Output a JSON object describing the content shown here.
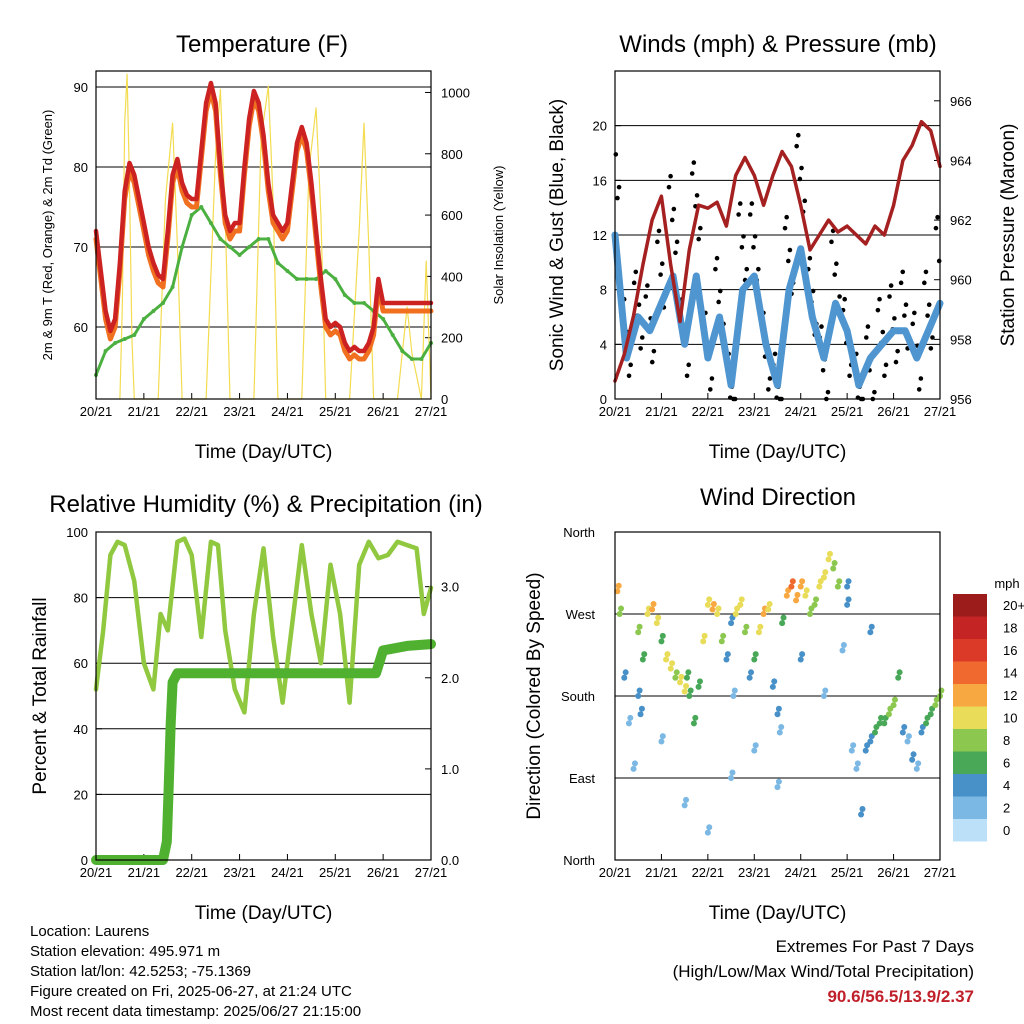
{
  "chart_data": [
    {
      "type": "line",
      "title": "Temperature (F)",
      "xlabel": "Time (Day/UTC)",
      "ylabel": "2m & 9m T (Red, Orange) & 2m Td (Green)",
      "y2label": "Solar Insolation (Yellow)",
      "categories": [
        "20/21",
        "21/21",
        "22/21",
        "23/21",
        "24/21",
        "25/21",
        "26/21",
        "27/21"
      ],
      "ylim": [
        51,
        92
      ],
      "y2lim": [
        0,
        1070
      ],
      "yticks": [
        "60",
        "70",
        "80",
        "90"
      ],
      "y2ticks": [
        "0",
        "200",
        "400",
        "600",
        "800",
        "1000"
      ],
      "grid": true,
      "colors": {
        "temp2m": "#cc2222",
        "temp9m": "#f07020",
        "dewpoint": "#4cb040",
        "solar": "#f3dc50"
      },
      "series": [
        {
          "key": "temp2m",
          "x": [
            0,
            0.1,
            0.2,
            0.3,
            0.4,
            0.5,
            0.6,
            0.7,
            0.8,
            0.9,
            1.0,
            1.1,
            1.2,
            1.3,
            1.4,
            1.5,
            1.6,
            1.7,
            1.8,
            1.9,
            2.0,
            2.1,
            2.2,
            2.3,
            2.4,
            2.5,
            2.6,
            2.7,
            2.8,
            2.9,
            3.0,
            3.1,
            3.2,
            3.3,
            3.4,
            3.5,
            3.6,
            3.7,
            3.8,
            3.9,
            4.0,
            4.1,
            4.2,
            4.3,
            4.4,
            4.5,
            4.6,
            4.7,
            4.8,
            4.9,
            5.0,
            5.1,
            5.2,
            5.3,
            5.4,
            5.5,
            5.6,
            5.7,
            5.8,
            5.9,
            6.0,
            6.1,
            6.2,
            6.3,
            6.4,
            6.5,
            6.6,
            6.7,
            6.8,
            6.9,
            7.0
          ],
          "y": [
            72,
            67,
            62,
            59.5,
            61,
            68,
            77,
            80.5,
            79,
            76,
            73,
            70,
            68,
            66.5,
            66,
            72,
            79,
            81,
            78,
            76.5,
            76,
            76,
            82,
            88,
            90.5,
            88,
            80,
            74,
            72,
            73,
            73,
            80,
            86,
            89.5,
            88,
            84,
            78,
            74,
            73,
            72,
            73,
            78,
            83,
            85,
            83,
            78,
            72,
            66,
            61,
            60,
            60.5,
            60,
            58,
            57,
            57.5,
            57,
            57,
            58,
            60,
            66,
            63,
            63,
            63,
            63,
            63,
            63,
            63,
            63,
            63,
            63,
            63
          ]
        },
        {
          "key": "dewpoint",
          "x": [
            0,
            0.2,
            0.4,
            0.6,
            0.8,
            1.0,
            1.2,
            1.4,
            1.6,
            1.8,
            2.0,
            2.2,
            2.4,
            2.6,
            2.8,
            3.0,
            3.2,
            3.4,
            3.6,
            3.8,
            4.0,
            4.2,
            4.4,
            4.6,
            4.8,
            5.0,
            5.2,
            5.4,
            5.6,
            5.8,
            6.0,
            6.2,
            6.4,
            6.6,
            6.8,
            7.0
          ],
          "y": [
            54,
            57,
            58,
            58.5,
            59,
            61,
            62,
            63,
            65,
            70,
            74,
            75,
            73,
            71,
            70,
            69,
            70,
            71,
            71,
            68,
            67,
            66,
            66,
            66,
            67,
            66,
            64,
            63,
            63,
            62,
            61,
            59,
            57,
            56,
            56,
            58
          ]
        },
        {
          "key": "solar",
          "x": [
            0.5,
            0.55,
            0.6,
            0.65,
            0.7,
            0.75,
            0.8,
            1.3,
            1.45,
            1.6,
            1.7,
            1.8,
            2.3,
            2.5,
            2.6,
            2.7,
            2.8,
            3.3,
            3.45,
            3.6,
            3.7,
            3.8,
            4.3,
            4.45,
            4.6,
            4.7,
            4.8,
            5.3,
            5.5,
            5.6,
            5.7,
            5.8,
            6.3,
            6.5,
            6.6,
            6.8,
            6.9,
            7.0
          ],
          "y": [
            0,
            300,
            900,
            1060,
            700,
            200,
            0,
            0,
            650,
            900,
            500,
            0,
            0,
            800,
            1010,
            600,
            0,
            0,
            850,
            1020,
            650,
            0,
            0,
            750,
            950,
            600,
            0,
            0,
            550,
            900,
            500,
            0,
            0,
            300,
            150,
            0,
            450,
            0
          ]
        }
      ]
    },
    {
      "type": "line",
      "title": "Winds (mph) & Pressure (mb)",
      "xlabel": "Time (Day/UTC)",
      "ylabel": "Sonic Wind & Gust (Blue, Black)",
      "y2label": "Station Pressure (Maroon)",
      "categories": [
        "20/21",
        "21/21",
        "22/21",
        "23/21",
        "24/21",
        "25/21",
        "26/21",
        "27/21"
      ],
      "ylim": [
        0,
        24
      ],
      "y2lim": [
        956,
        967
      ],
      "yticks": [
        "0",
        "4",
        "8",
        "12",
        "16",
        "20"
      ],
      "y2ticks": [
        "956",
        "958",
        "960",
        "962",
        "964",
        "966"
      ],
      "grid": true,
      "colors": {
        "wind": "#4f95d0",
        "gust": "#000000",
        "pressure": "#a52020"
      },
      "series": [
        {
          "key": "wind",
          "x": [
            0,
            0.25,
            0.5,
            0.75,
            1.0,
            1.25,
            1.5,
            1.75,
            2.0,
            2.25,
            2.5,
            2.75,
            3.0,
            3.25,
            3.5,
            3.75,
            4.0,
            4.25,
            4.5,
            4.75,
            5.0,
            5.25,
            5.5,
            5.75,
            6.0,
            6.25,
            6.5,
            6.75,
            7.0
          ],
          "y": [
            12,
            3,
            6,
            5,
            7,
            9,
            4,
            9,
            3,
            6,
            1,
            8,
            9,
            4,
            1,
            8,
            11,
            6,
            3,
            7,
            5,
            1,
            3,
            4,
            5,
            5,
            3,
            5,
            7
          ]
        },
        {
          "key": "gust",
          "x": [
            0,
            0.25,
            0.5,
            0.75,
            1.0,
            1.25,
            1.5,
            1.75,
            2.0,
            2.25,
            2.5,
            2.75,
            3.0,
            3.25,
            3.5,
            3.75,
            4.0,
            4.25,
            4.5,
            4.75,
            5.0,
            5.25,
            5.5,
            5.75,
            6.0,
            6.25,
            6.5,
            6.75,
            7.0
          ],
          "y": [
            20,
            7,
            9,
            8,
            12,
            16,
            7,
            17,
            6,
            10,
            3,
            14,
            14,
            6,
            3,
            13,
            19,
            10,
            5,
            12,
            7,
            3,
            5,
            7,
            8,
            9,
            6,
            9,
            13
          ]
        },
        {
          "key": "pressure",
          "x": [
            0,
            0.2,
            0.4,
            0.6,
            0.8,
            1.0,
            1.2,
            1.4,
            1.6,
            1.8,
            2.0,
            2.2,
            2.4,
            2.6,
            2.8,
            3.0,
            3.2,
            3.4,
            3.6,
            3.8,
            4.0,
            4.2,
            4.4,
            4.6,
            4.8,
            5.0,
            5.2,
            5.4,
            5.6,
            5.8,
            6.0,
            6.2,
            6.4,
            6.6,
            6.8,
            7.0
          ],
          "y": [
            956.6,
            957.5,
            958.8,
            960.5,
            962.0,
            962.8,
            960.5,
            958.6,
            961.0,
            962.5,
            962.4,
            962.6,
            961.8,
            963.5,
            964.1,
            963.5,
            962.5,
            963.5,
            964.3,
            963.8,
            962.5,
            961.0,
            961.5,
            962.0,
            961.6,
            961.8,
            961.5,
            961.2,
            961.8,
            961.5,
            962.5,
            964.0,
            964.5,
            965.3,
            965.0,
            963.8
          ]
        }
      ]
    },
    {
      "type": "line",
      "title": "Relative Humidity (%) & Precipitation (in)",
      "xlabel": "Time (Day/UTC)",
      "ylabel": "Percent & Total Rainfall",
      "categories": [
        "20/21",
        "21/21",
        "22/21",
        "23/21",
        "24/21",
        "25/21",
        "26/21",
        "27/21"
      ],
      "ylim": [
        0,
        100
      ],
      "y2lim": [
        0,
        3.6
      ],
      "yticks": [
        "0",
        "20",
        "40",
        "60",
        "80",
        "100"
      ],
      "y2ticks": [
        "0.0",
        "1.0",
        "2.0",
        "3.0"
      ],
      "grid": true,
      "colors": {
        "humidity": "#90c840",
        "precip": "#50b030"
      },
      "series": [
        {
          "key": "humidity",
          "x": [
            0,
            0.15,
            0.3,
            0.45,
            0.6,
            0.8,
            1.0,
            1.2,
            1.35,
            1.5,
            1.7,
            1.85,
            2.0,
            2.2,
            2.4,
            2.55,
            2.7,
            2.9,
            3.1,
            3.3,
            3.5,
            3.7,
            3.9,
            4.1,
            4.3,
            4.5,
            4.7,
            4.9,
            5.1,
            5.3,
            5.5,
            5.7,
            5.9,
            6.1,
            6.3,
            6.5,
            6.7,
            6.85,
            7.0
          ],
          "y": [
            52,
            70,
            93,
            97,
            96,
            85,
            60,
            52,
            75,
            70,
            97,
            98,
            93,
            68,
            97,
            96,
            70,
            52,
            45,
            75,
            95,
            68,
            48,
            72,
            96,
            75,
            60,
            90,
            75,
            48,
            90,
            97,
            92,
            93,
            97,
            96,
            95,
            75,
            83
          ]
        },
        {
          "key": "precip",
          "x": [
            0,
            1.4,
            1.48,
            1.52,
            1.56,
            1.6,
            1.7,
            2.0,
            3.0,
            4.0,
            5.0,
            5.85,
            6.0,
            6.5,
            7.0
          ],
          "y": [
            0,
            0,
            0.2,
            0.8,
            1.5,
            1.95,
            2.05,
            2.05,
            2.05,
            2.05,
            2.05,
            2.05,
            2.3,
            2.35,
            2.37
          ]
        }
      ]
    },
    {
      "type": "scatter",
      "title": "Wind Direction",
      "xlabel": "Time (Day/UTC)",
      "ylabel": "Direction (Colored By Speed)",
      "categories": [
        "20/21",
        "21/21",
        "22/21",
        "23/21",
        "24/21",
        "25/21",
        "26/21",
        "27/21"
      ],
      "ylim": [
        0,
        360
      ],
      "yticks": [
        "North",
        "East",
        "South",
        "West",
        "North"
      ],
      "colorbar_title": "mph",
      "colorbar_labels": [
        "20+",
        "18",
        "16",
        "14",
        "12",
        "10",
        "8",
        "6",
        "4",
        "2",
        "0"
      ],
      "colorbar_colors": [
        "#9c1c1c",
        "#c42424",
        "#dc3a28",
        "#f06a30",
        "#f8a840",
        "#e8dc58",
        "#8cc850",
        "#48a858",
        "#4890c8",
        "#7cb8e4",
        "#bce0f8"
      ],
      "grid": true,
      "series": [
        {
          "key": "direction",
          "x": [
            0.05,
            0.1,
            0.2,
            0.3,
            0.4,
            0.5,
            0.6,
            0.7,
            0.8,
            0.9,
            1.0,
            1.1,
            1.2,
            1.3,
            1.4,
            1.5,
            1.6,
            1.7,
            1.8,
            1.9,
            2.0,
            2.1,
            2.2,
            2.3,
            2.4,
            2.5,
            2.6,
            2.7,
            2.8,
            2.9,
            3.0,
            3.1,
            3.2,
            3.3,
            3.4,
            3.5,
            3.6,
            3.7,
            3.8,
            3.9,
            4.0,
            4.1,
            4.2,
            4.3,
            4.4,
            4.5,
            4.6,
            4.7,
            4.8,
            4.9,
            5.0,
            5.1,
            5.2,
            5.3,
            5.4,
            5.5,
            5.6,
            5.7,
            5.8,
            5.9,
            6.0,
            6.1,
            6.2,
            6.3,
            6.4,
            6.5,
            6.6,
            6.7,
            6.8,
            6.9,
            7.0,
            0.5,
            1.0,
            1.5,
            2.0,
            2.5,
            3.0,
            3.5,
            4.0,
            4.5,
            5.0,
            5.5,
            0.55,
            1.55,
            2.55,
            3.55
          ],
          "y": [
            295,
            270,
            200,
            150,
            100,
            250,
            220,
            270,
            275,
            260,
            240,
            220,
            210,
            200,
            195,
            185,
            180,
            150,
            190,
            240,
            280,
            275,
            270,
            240,
            220,
            260,
            270,
            280,
            250,
            200,
            220,
            250,
            270,
            275,
            190,
            160,
            260,
            290,
            300,
            285,
            300,
            290,
            270,
            280,
            300,
            310,
            330,
            320,
            300,
            230,
            280,
            120,
            100,
            50,
            120,
            130,
            140,
            150,
            150,
            160,
            170,
            200,
            140,
            130,
            110,
            100,
            140,
            150,
            160,
            170,
            180,
            180,
            130,
            60,
            30,
            90,
            120,
            80,
            220,
            180,
            300,
            250,
            160,
            200,
            180,
            140
          ],
          "speed": [
            12,
            8,
            3,
            2,
            2,
            7,
            5,
            9,
            12,
            9,
            6,
            9,
            10,
            8,
            10,
            9,
            6,
            5,
            6,
            9,
            10,
            12,
            10,
            7,
            3,
            3,
            9,
            10,
            8,
            4,
            5,
            9,
            12,
            10,
            4,
            3,
            6,
            12,
            13,
            11,
            12,
            9,
            7,
            8,
            9,
            10,
            9,
            8,
            7,
            2,
            4,
            2,
            2,
            3,
            3,
            4,
            5,
            6,
            6,
            7,
            8,
            5,
            3,
            2,
            3,
            2,
            4,
            5,
            6,
            7,
            7,
            3,
            1,
            1,
            1,
            1,
            2,
            2,
            4,
            2,
            4,
            3,
            4,
            5,
            2,
            2
          ]
        }
      ]
    }
  ],
  "info": {
    "location": "Location: Laurens",
    "elevation": "Station elevation: 495.971 m",
    "latlon": "Station lat/lon: 42.5253; -75.1369",
    "created": "Figure created on Fri, 2025-06-27, at 21:24 UTC",
    "timestamp": "Most recent data timestamp: 2025/06/27 21:15:00"
  },
  "extremes": {
    "title": "Extremes For Past 7 Days",
    "subtitle": "(High/Low/Max Wind/Total Precipitation)",
    "values": "90.6/56.5/13.9/2.37"
  }
}
